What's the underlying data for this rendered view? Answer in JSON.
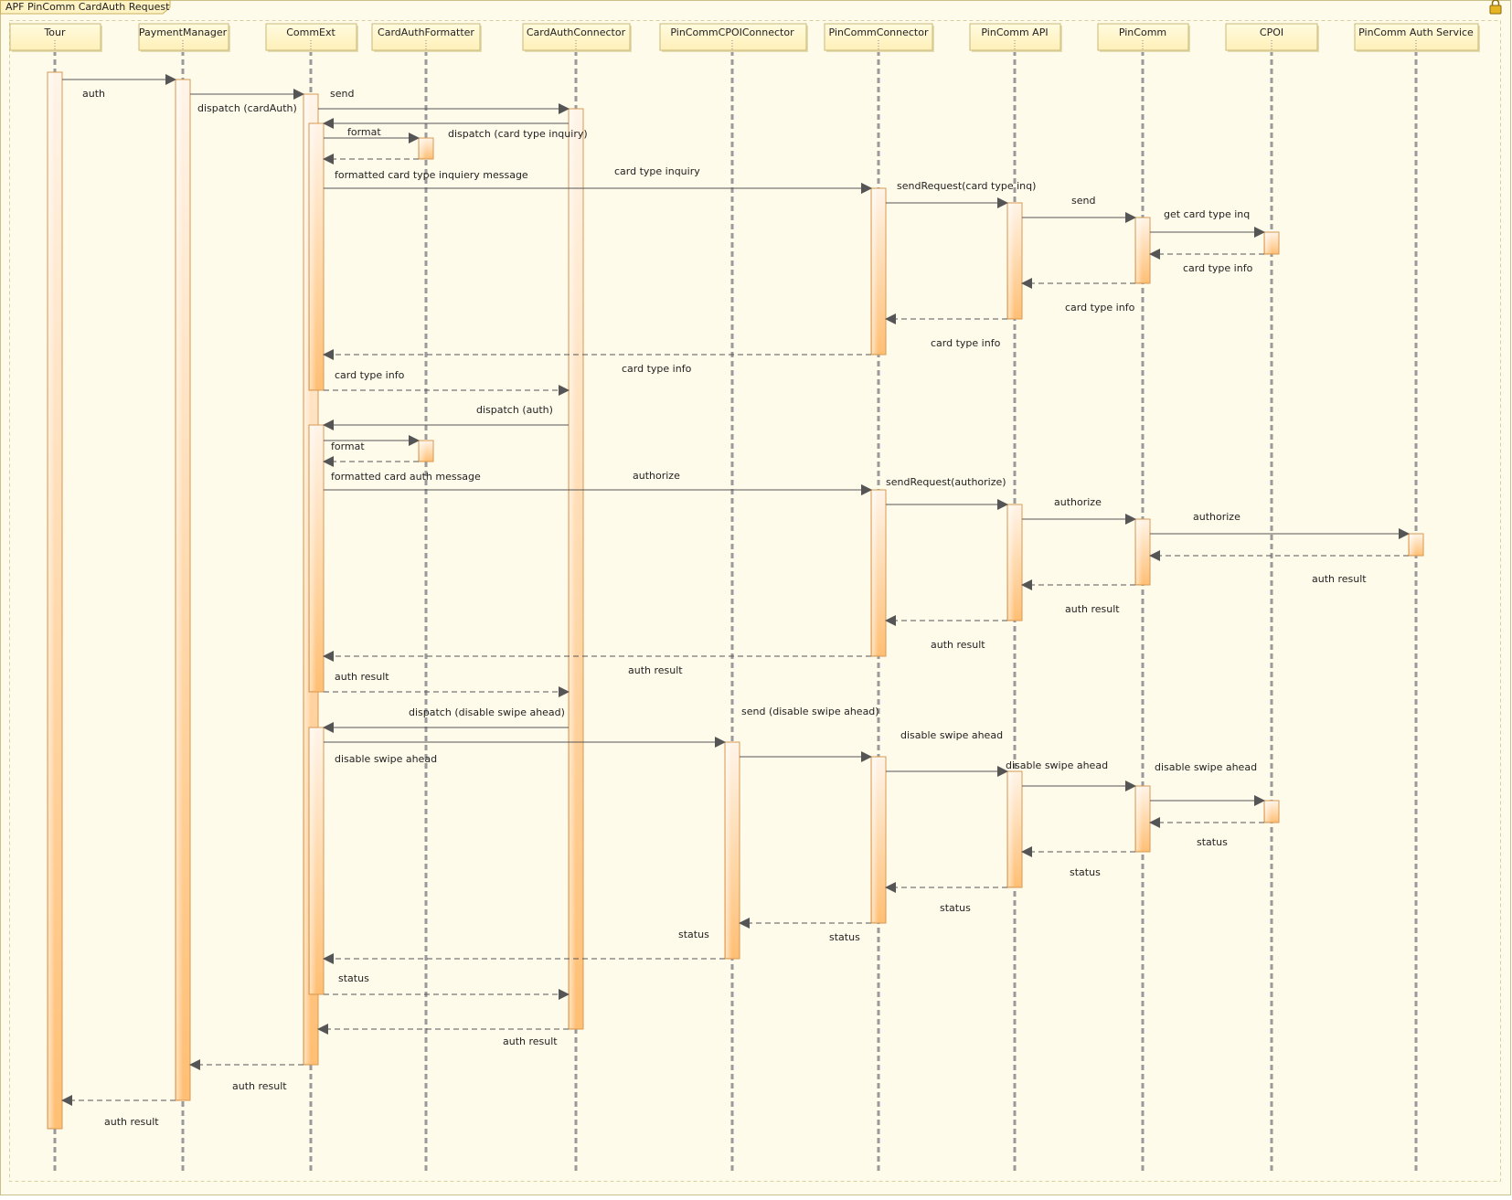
{
  "diagram": {
    "title": "APF PinComm CardAuth Request",
    "lock_icon": "lock-icon",
    "colors": {
      "background": "#fffbea",
      "frame_border": "#c9c08a",
      "header_fill": "#fff6c8",
      "header_border": "#c8b878",
      "lifeline": "#9a9a9a",
      "activation_top": "#fff3e6",
      "activation_bottom": "#ffc078",
      "activation_border": "#d79a55",
      "message": "#555555"
    }
  },
  "participants": [
    {
      "id": "tour",
      "name": "Tour"
    },
    {
      "id": "paymentmanager",
      "name": "PaymentManager"
    },
    {
      "id": "commext",
      "name": "CommExt"
    },
    {
      "id": "cardauthformatter",
      "name": "CardAuthFormatter"
    },
    {
      "id": "cardauthconnector",
      "name": "CardAuthConnector"
    },
    {
      "id": "pincommcpoiconnector",
      "name": "PinCommCPOIConnector"
    },
    {
      "id": "pincommconnector",
      "name": "PinCommConnector"
    },
    {
      "id": "pincommapi",
      "name": "PinComm API"
    },
    {
      "id": "pincomm",
      "name": "PinComm"
    },
    {
      "id": "cpoi",
      "name": "CPOI"
    },
    {
      "id": "pincommauthservice",
      "name": "PinComm Auth Service"
    }
  ],
  "messages": [
    {
      "label": "auth"
    },
    {
      "label": "dispatch (cardAuth)"
    },
    {
      "label": "send"
    },
    {
      "label": "dispatch (card type inquiry)"
    },
    {
      "label": "format"
    },
    {
      "label": ""
    },
    {
      "label": "formatted card type inquiery message"
    },
    {
      "label": "card type inquiry"
    },
    {
      "label": "sendRequest(card type inq)"
    },
    {
      "label": "send"
    },
    {
      "label": "get card type inq"
    },
    {
      "label": "card type info"
    },
    {
      "label": "card type info"
    },
    {
      "label": "card type info"
    },
    {
      "label": "card type info"
    },
    {
      "label": "card type info"
    },
    {
      "label": "dispatch (auth)"
    },
    {
      "label": "format"
    },
    {
      "label": ""
    },
    {
      "label": "formatted card auth message"
    },
    {
      "label": "authorize"
    },
    {
      "label": "sendRequest(authorize)"
    },
    {
      "label": "authorize"
    },
    {
      "label": "authorize"
    },
    {
      "label": "auth result"
    },
    {
      "label": "auth result"
    },
    {
      "label": "auth result"
    },
    {
      "label": "auth result"
    },
    {
      "label": "auth result"
    },
    {
      "label": "dispatch (disable swipe ahead)"
    },
    {
      "label": "disable swipe ahead"
    },
    {
      "label": "send (disable swipe ahead)"
    },
    {
      "label": "disable swipe ahead"
    },
    {
      "label": "disable swipe ahead"
    },
    {
      "label": "disable swipe ahead"
    },
    {
      "label": "status"
    },
    {
      "label": "status"
    },
    {
      "label": "status"
    },
    {
      "label": "status"
    },
    {
      "label": "status"
    },
    {
      "label": "status"
    },
    {
      "label": "auth result"
    },
    {
      "label": "auth result"
    },
    {
      "label": "auth result"
    }
  ]
}
